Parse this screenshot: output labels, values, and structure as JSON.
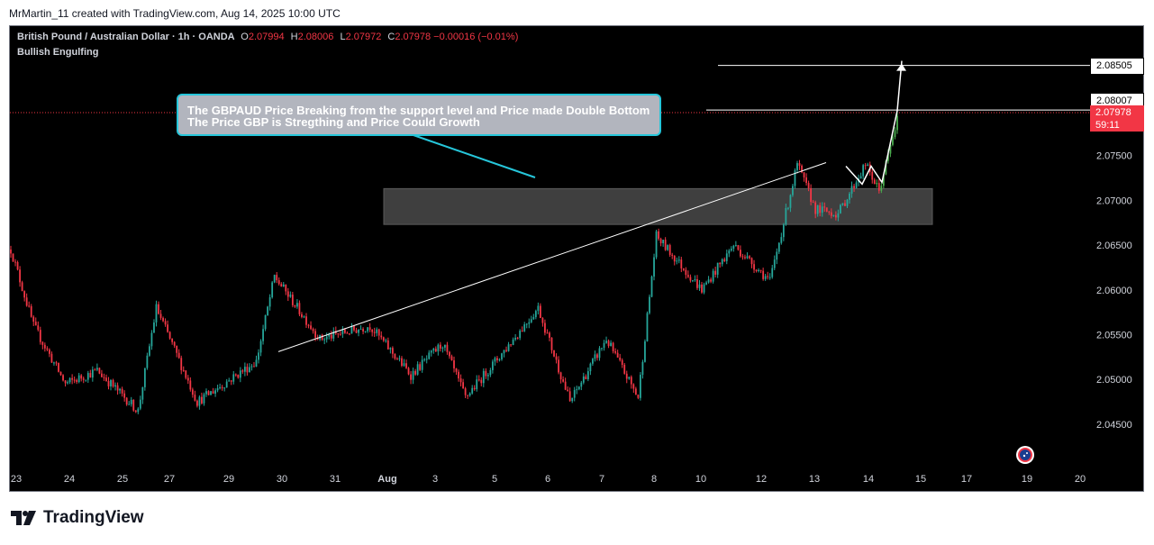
{
  "header": {
    "credit": "MrMartin_11 created with TradingView.com, Aug 14, 2025 10:00 UTC"
  },
  "legend": {
    "symbol": "British Pound / Australian Dollar · 1h · OANDA",
    "o_label": "O",
    "o": "2.07994",
    "h_label": "H",
    "h": "2.08006",
    "l_label": "L",
    "l": "2.07972",
    "c_label": "C",
    "c": "2.07978",
    "change": "−0.00016 (−0.01%)",
    "indicator": "Bullish Engulfing"
  },
  "annotation": {
    "line1": "The GBPAUD Price Breaking from the support level and Price made Double Bottom",
    "line2": "The Price GBP is Stregthing and Price Could Growth"
  },
  "price_tags": {
    "target": "2.08505",
    "high": "2.08007",
    "last": "2.07978",
    "countdown": "59:11"
  },
  "brand": {
    "logo_text": "TradingView"
  },
  "colors": {
    "up": "#26a69a",
    "up_bright": "#4caf50",
    "down": "#f23645",
    "background": "#000000",
    "zone": "#4a4a4a",
    "annotation_border": "#26c6da"
  },
  "chart_data": {
    "type": "candlestick",
    "symbol": "GBPAUD",
    "interval": "1h",
    "y_ticks": [
      "2.07500",
      "2.07000",
      "2.06500",
      "2.06000",
      "2.05500",
      "2.05000",
      "2.04500"
    ],
    "x_ticks": [
      "23",
      "24",
      "25",
      "27",
      "29",
      "30",
      "31",
      "Aug",
      "3",
      "5",
      "6",
      "7",
      "8",
      "10",
      "12",
      "13",
      "14",
      "15",
      "17",
      "19",
      "20"
    ],
    "ylim": [
      2.0415,
      2.0865
    ],
    "support_zone": [
      2.0673,
      2.0713
    ],
    "trendline": [
      [
        2.0531,
        "Jul 30"
      ],
      [
        2.0742,
        "Aug 13"
      ]
    ],
    "target_level": 2.08505,
    "high_level": 2.08007,
    "anchors": [
      [
        0,
        2.0645
      ],
      [
        10,
        2.056
      ],
      [
        24,
        2.0495
      ],
      [
        38,
        2.051
      ],
      [
        56,
        2.0465
      ],
      [
        64,
        2.058
      ],
      [
        82,
        2.0475
      ],
      [
        108,
        2.052
      ],
      [
        116,
        2.0615
      ],
      [
        136,
        2.0545
      ],
      [
        158,
        2.056
      ],
      [
        176,
        2.0505
      ],
      [
        190,
        2.054
      ],
      [
        200,
        2.048
      ],
      [
        218,
        2.0535
      ],
      [
        232,
        2.058
      ],
      [
        246,
        2.0475
      ],
      [
        262,
        2.0545
      ],
      [
        276,
        2.048
      ],
      [
        284,
        2.066
      ],
      [
        304,
        2.06
      ],
      [
        318,
        2.065
      ],
      [
        334,
        2.061
      ],
      [
        346,
        2.074
      ],
      [
        354,
        2.069
      ],
      [
        364,
        2.0685
      ],
      [
        376,
        2.074
      ],
      [
        382,
        2.071
      ],
      [
        390,
        2.079
      ]
    ]
  }
}
